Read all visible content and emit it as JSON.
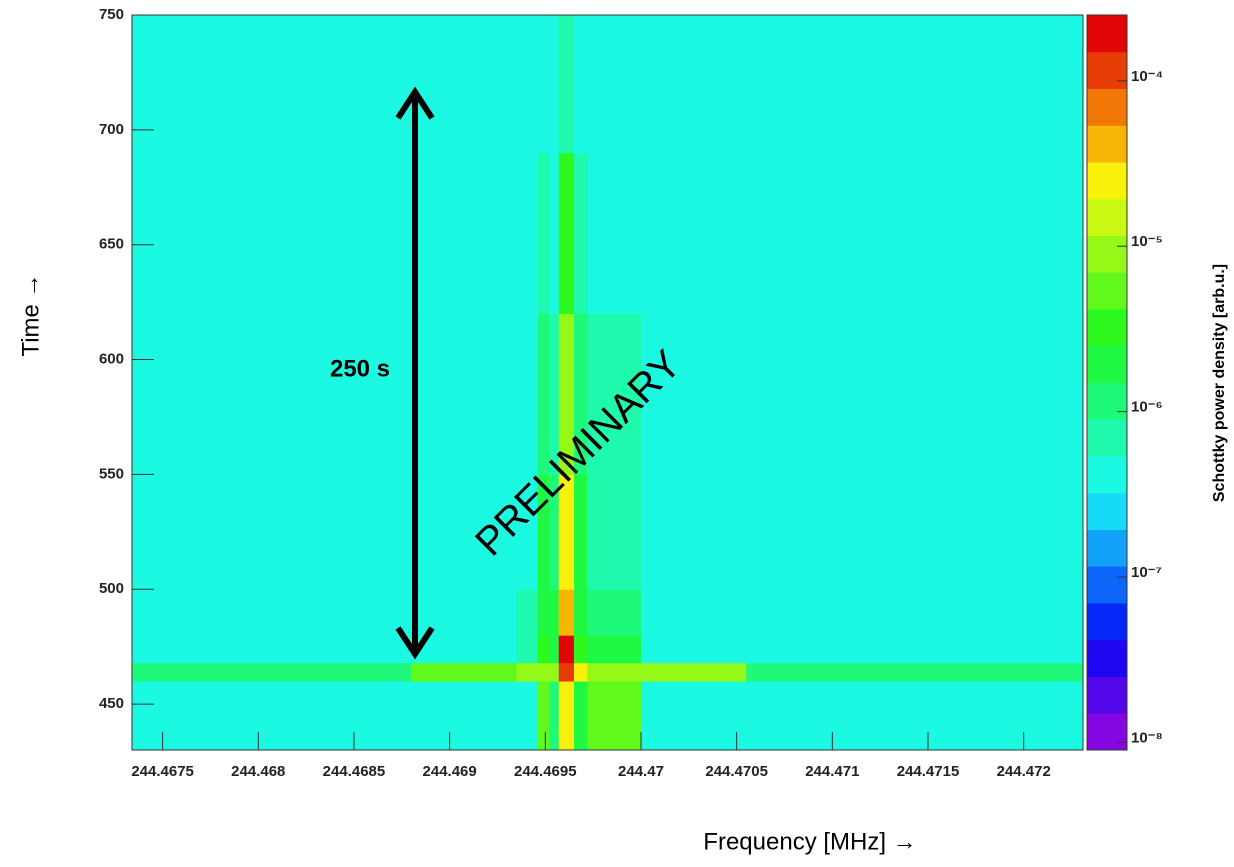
{
  "chart_data": {
    "type": "heatmap",
    "x_label": "Frequency [MHz]  →",
    "y_label": "Time  →",
    "colorbar_label": "Schottky power density [arb.u.]",
    "annotations": [
      "250 s",
      "PRELIMINARY"
    ],
    "x_edges": [
      244.46734,
      244.4688,
      244.46935,
      244.46946,
      244.46952,
      244.46957,
      244.46965,
      244.46972,
      244.47,
      244.47055,
      244.47231
    ],
    "y_edges": [
      430,
      460,
      468,
      480,
      500,
      550,
      620,
      690,
      750
    ],
    "z": [
      [
        4e-07,
        4e-07,
        4e-07,
        5e-06,
        1e-06,
        3e-05,
        2e-06,
        5e-06,
        4e-07,
        4e-07
      ],
      [
        1e-06,
        5e-06,
        8e-06,
        1e-05,
        1e-05,
        0.0001,
        2e-05,
        1e-05,
        8e-06,
        1e-06
      ],
      [
        4e-07,
        4e-07,
        8e-07,
        3e-06,
        2e-06,
        0.0002,
        3e-06,
        2e-06,
        5e-07,
        4e-07
      ],
      [
        4e-07,
        4e-07,
        6e-07,
        2e-06,
        1.5e-06,
        5e-05,
        2e-06,
        1e-06,
        4e-07,
        4e-07
      ],
      [
        4e-07,
        4e-07,
        5e-07,
        1.5e-06,
        1e-06,
        2e-05,
        1.5e-06,
        8e-07,
        4e-07,
        4e-07
      ],
      [
        4e-07,
        4e-07,
        4e-07,
        1e-06,
        8e-07,
        1e-05,
        1e-06,
        6e-07,
        4e-07,
        4e-07
      ],
      [
        4e-07,
        4e-07,
        4e-07,
        6e-07,
        5e-07,
        4e-06,
        6e-07,
        5e-07,
        4e-07,
        4e-07
      ],
      [
        4e-07,
        4e-07,
        4e-07,
        4e-07,
        4e-07,
        8e-07,
        4e-07,
        4e-07,
        4e-07,
        4e-07
      ]
    ],
    "xlim": [
      244.46734,
      244.47231
    ],
    "ylim": [
      430,
      750
    ],
    "zlim": [
      9e-09,
      0.00025
    ],
    "z_log": true,
    "colormap": "rainbow",
    "color_steps": 20,
    "xticks": [
      244.4675,
      244.468,
      244.4685,
      244.469,
      244.4695,
      244.47,
      244.4705,
      244.471,
      244.4715,
      244.472
    ],
    "yticks": [
      450,
      500,
      550,
      600,
      650,
      700,
      750
    ],
    "zticks": [
      {
        "value": 1e-08,
        "label": "10⁻⁸"
      },
      {
        "value": 1e-07,
        "label": "10⁻⁷"
      },
      {
        "value": 1e-06,
        "label": "10⁻⁶"
      },
      {
        "value": 1e-05,
        "label": "10⁻⁵"
      },
      {
        "value": 0.0001,
        "label": "10⁻⁴"
      }
    ]
  }
}
